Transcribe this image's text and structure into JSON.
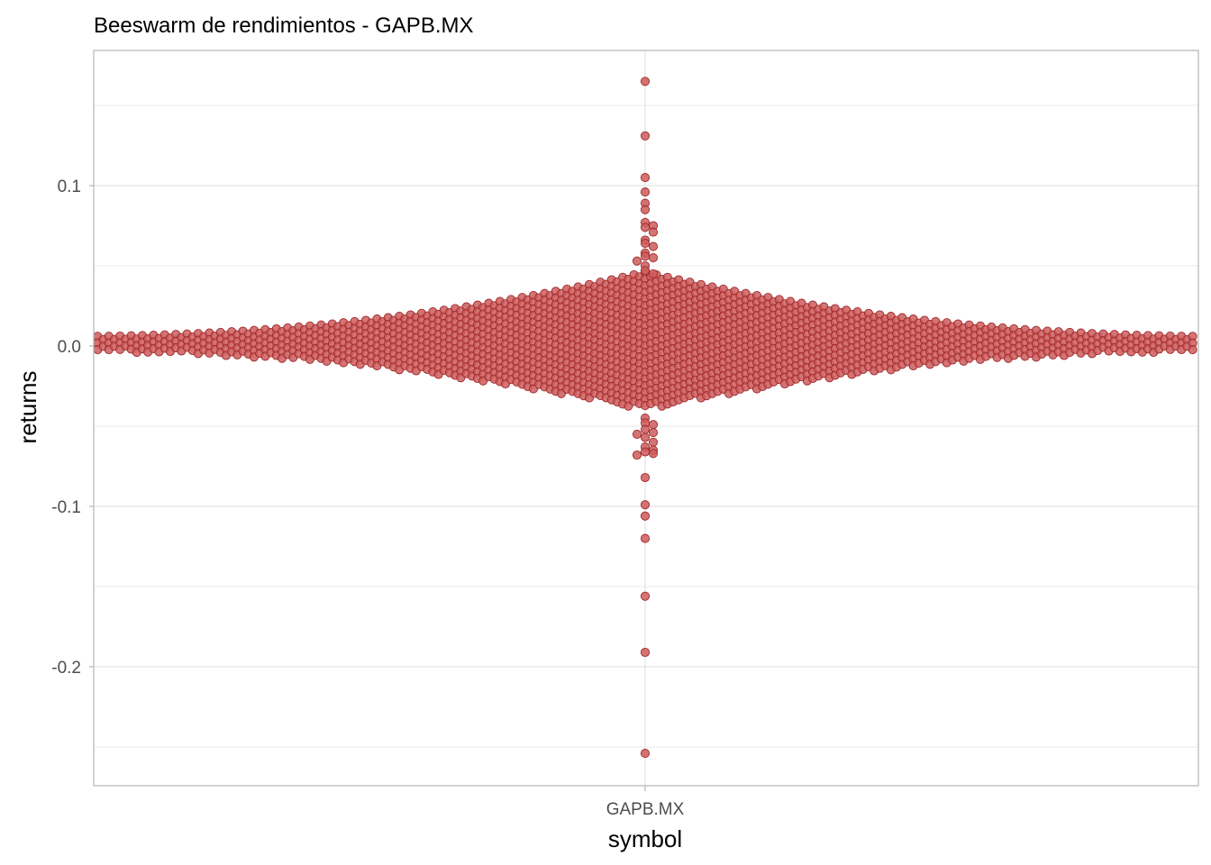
{
  "chart_data": {
    "type": "scatter",
    "subtype": "beeswarm",
    "title": "Beeswarm de rendimientos - GAPB.MX",
    "xlabel": "symbol",
    "ylabel": "returns",
    "categories": [
      "GAPB.MX"
    ],
    "ylim": [
      -0.27,
      0.19
    ],
    "yticks": [
      {
        "value": 0.1,
        "label": "0.1"
      },
      {
        "value": 0.0,
        "label": "0.0"
      },
      {
        "value": -0.1,
        "label": "-0.1"
      },
      {
        "value": -0.2,
        "label": "-0.2"
      }
    ],
    "grid": true,
    "legend": "none",
    "colors": {
      "point_fill": "#cd5c5c",
      "point_stroke": "#a0282a",
      "grid": "#dedede",
      "border": "#b3b3b3"
    },
    "series": [
      {
        "category": "GAPB.MX",
        "outlier_values": [
          0.165,
          0.131,
          0.105,
          0.096,
          0.089,
          0.085,
          0.077,
          0.075,
          0.074,
          0.071,
          0.066,
          0.064,
          0.062,
          0.058,
          0.056,
          0.055,
          0.053,
          0.05,
          0.047,
          0.045,
          -0.045,
          -0.048,
          -0.049,
          -0.052,
          -0.054,
          -0.055,
          -0.057,
          -0.06,
          -0.063,
          -0.065,
          -0.066,
          -0.067,
          -0.068,
          -0.082,
          -0.099,
          -0.106,
          -0.12,
          -0.156,
          -0.191,
          -0.254
        ],
        "density_profile": [
          {
            "r": -0.04,
            "n": 22
          },
          {
            "r": -0.035,
            "n": 38
          },
          {
            "r": -0.03,
            "n": 56
          },
          {
            "r": -0.025,
            "n": 84
          },
          {
            "r": -0.02,
            "n": 120
          },
          {
            "r": -0.015,
            "n": 170
          },
          {
            "r": -0.01,
            "n": 220
          },
          {
            "r": -0.005,
            "n": 265
          },
          {
            "r": 0.0,
            "n": 280
          },
          {
            "r": 0.005,
            "n": 262
          },
          {
            "r": 0.01,
            "n": 215
          },
          {
            "r": 0.015,
            "n": 160
          },
          {
            "r": 0.02,
            "n": 110
          },
          {
            "r": 0.025,
            "n": 76
          },
          {
            "r": 0.03,
            "n": 50
          },
          {
            "r": 0.035,
            "n": 34
          },
          {
            "r": 0.04,
            "n": 20
          }
        ]
      }
    ]
  }
}
